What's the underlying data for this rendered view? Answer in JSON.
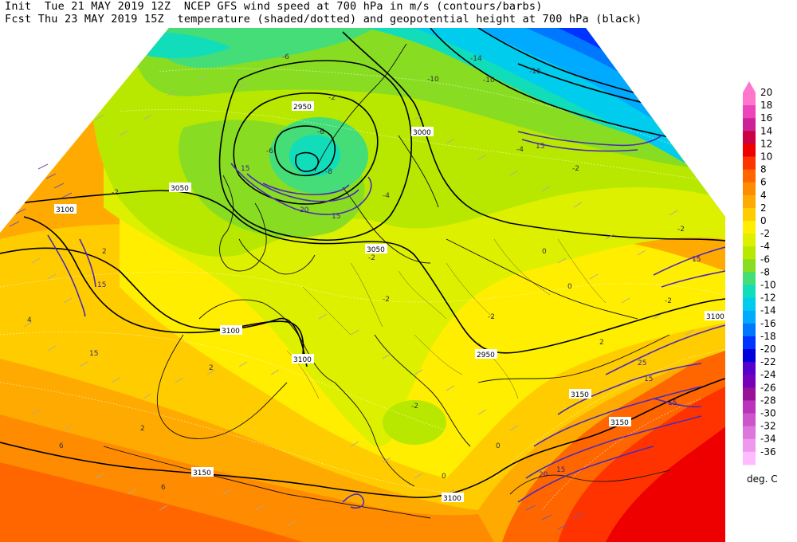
{
  "header": {
    "line1": "Init  Tue 21 MAY 2019 12Z  NCEP GFS wind speed at 700 hPa in m/s (contours/barbs)",
    "line2": "Fcst Thu 23 MAY 2019 15Z  temperature (shaded/dotted) and geopotential height at 700 hPa (black)"
  },
  "colorbar": {
    "units": "deg. C",
    "levels": [
      {
        "label": "20",
        "color": "#ff77cc"
      },
      {
        "label": "18",
        "color": "#ee44bb"
      },
      {
        "label": "16",
        "color": "#cc2299"
      },
      {
        "label": "14",
        "color": "#cc0044"
      },
      {
        "label": "12",
        "color": "#ee0000"
      },
      {
        "label": "10",
        "color": "#ff3300"
      },
      {
        "label": "8",
        "color": "#ff6600"
      },
      {
        "label": "6",
        "color": "#ff8c00"
      },
      {
        "label": "4",
        "color": "#ffaa00"
      },
      {
        "label": "2",
        "color": "#ffcc00"
      },
      {
        "label": "0",
        "color": "#ffee00"
      },
      {
        "label": "-2",
        "color": "#ddf000"
      },
      {
        "label": "-4",
        "color": "#b8e800"
      },
      {
        "label": "-6",
        "color": "#88dd22"
      },
      {
        "label": "-8",
        "color": "#44dd77"
      },
      {
        "label": "-10",
        "color": "#11ddbb"
      },
      {
        "label": "-12",
        "color": "#00ccee"
      },
      {
        "label": "-14",
        "color": "#00aaff"
      },
      {
        "label": "-16",
        "color": "#0077ff"
      },
      {
        "label": "-18",
        "color": "#0033ff"
      },
      {
        "label": "-20",
        "color": "#0000dd"
      },
      {
        "label": "-22",
        "color": "#5500cc"
      },
      {
        "label": "-24",
        "color": "#7700bb"
      },
      {
        "label": "-26",
        "color": "#991199"
      },
      {
        "label": "-28",
        "color": "#bb33bb"
      },
      {
        "label": "-30",
        "color": "#cc55cc"
      },
      {
        "label": "-32",
        "color": "#dd77dd"
      },
      {
        "label": "-34",
        "color": "#ee99ee"
      },
      {
        "label": "-36",
        "color": "#ffbbff"
      }
    ]
  },
  "map": {
    "height_labels": [
      "3100",
      "3050",
      "2950",
      "3000",
      "3050",
      "3100",
      "3100",
      "2950",
      "3150",
      "3100",
      "3150",
      "3150",
      "3100"
    ],
    "temperature_labels": [
      "-6",
      "-2",
      "-6",
      "-8",
      "-10",
      "-10",
      "-14",
      "-16",
      "-6",
      "-4",
      "-2",
      "-2",
      "-4",
      "-2",
      "-2",
      "-2",
      "0",
      "0",
      "0",
      "-2",
      "-2",
      "2",
      "4",
      "2",
      "6",
      "6",
      "2",
      "0",
      "2",
      "-2"
    ],
    "wind_labels": [
      "15",
      "20",
      "15",
      "15",
      "15",
      "15",
      "15",
      "25",
      "20",
      "15",
      "15",
      "15"
    ]
  }
}
